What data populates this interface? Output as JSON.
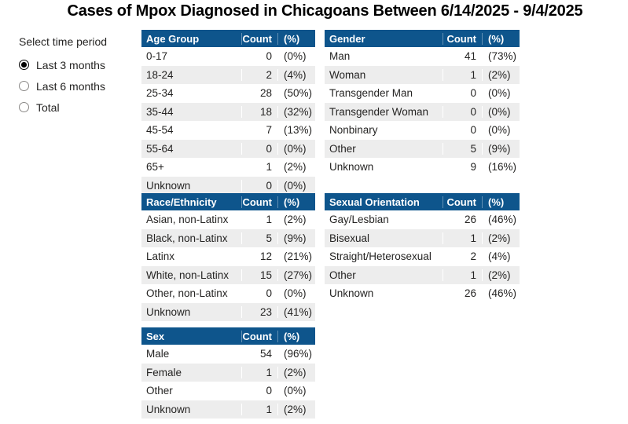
{
  "title": "Cases of Mpox Diagnosed in Chicagoans Between 6/14/2025 - 9/4/2025",
  "time_period": {
    "label": "Select time period",
    "options": [
      {
        "label": "Last 3 months",
        "selected": true
      },
      {
        "label": "Last 6 months",
        "selected": false
      },
      {
        "label": "Total",
        "selected": false
      }
    ]
  },
  "tables": [
    {
      "name": "Age Group",
      "columns": [
        "Age Group",
        "Count",
        "(%)"
      ],
      "rows": [
        [
          "0-17",
          "0",
          "(0%)"
        ],
        [
          "18-24",
          "2",
          "(4%)"
        ],
        [
          "25-34",
          "28",
          "(50%)"
        ],
        [
          "35-44",
          "18",
          "(32%)"
        ],
        [
          "45-54",
          "7",
          "(13%)"
        ],
        [
          "55-64",
          "0",
          "(0%)"
        ],
        [
          "65+",
          "1",
          "(2%)"
        ],
        [
          "Unknown",
          "0",
          "(0%)"
        ]
      ]
    },
    {
      "name": "Gender",
      "columns": [
        "Gender",
        "Count",
        "(%)"
      ],
      "rows": [
        [
          "Man",
          "41",
          "(73%)"
        ],
        [
          "Woman",
          "1",
          "(2%)"
        ],
        [
          "Transgender Man",
          "0",
          "(0%)"
        ],
        [
          "Transgender Woman",
          "0",
          "(0%)"
        ],
        [
          "Nonbinary",
          "0",
          "(0%)"
        ],
        [
          "Other",
          "5",
          "(9%)"
        ],
        [
          "Unknown",
          "9",
          "(16%)"
        ]
      ]
    },
    {
      "name": "Race/Ethnicity",
      "columns": [
        "Race/Ethnicity",
        "Count",
        "(%)"
      ],
      "rows": [
        [
          "Asian, non-Latinx",
          "1",
          "(2%)"
        ],
        [
          "Black, non-Latinx",
          "5",
          "(9%)"
        ],
        [
          "Latinx",
          "12",
          "(21%)"
        ],
        [
          "White, non-Latinx",
          "15",
          "(27%)"
        ],
        [
          "Other, non-Latinx",
          "0",
          "(0%)"
        ],
        [
          "Unknown",
          "23",
          "(41%)"
        ]
      ]
    },
    {
      "name": "Sexual Orientation",
      "columns": [
        "Sexual Orientation",
        "Count",
        "(%)"
      ],
      "rows": [
        [
          "Gay/Lesbian",
          "26",
          "(46%)"
        ],
        [
          "Bisexual",
          "1",
          "(2%)"
        ],
        [
          "Straight/Heterosexual",
          "2",
          "(4%)"
        ],
        [
          "Other",
          "1",
          "(2%)"
        ],
        [
          "Unknown",
          "26",
          "(46%)"
        ]
      ]
    },
    {
      "name": "Sex",
      "columns": [
        "Sex",
        "Count",
        "(%)"
      ],
      "rows": [
        [
          "Male",
          "54",
          "(96%)"
        ],
        [
          "Female",
          "1",
          "(2%)"
        ],
        [
          "Other",
          "0",
          "(0%)"
        ],
        [
          "Unknown",
          "1",
          "(2%)"
        ]
      ]
    }
  ],
  "colors": {
    "header_bg": "#0E558C",
    "header_text": "#FFFFFF",
    "row_alt": "#EDEDED",
    "body_text": "#252423"
  }
}
